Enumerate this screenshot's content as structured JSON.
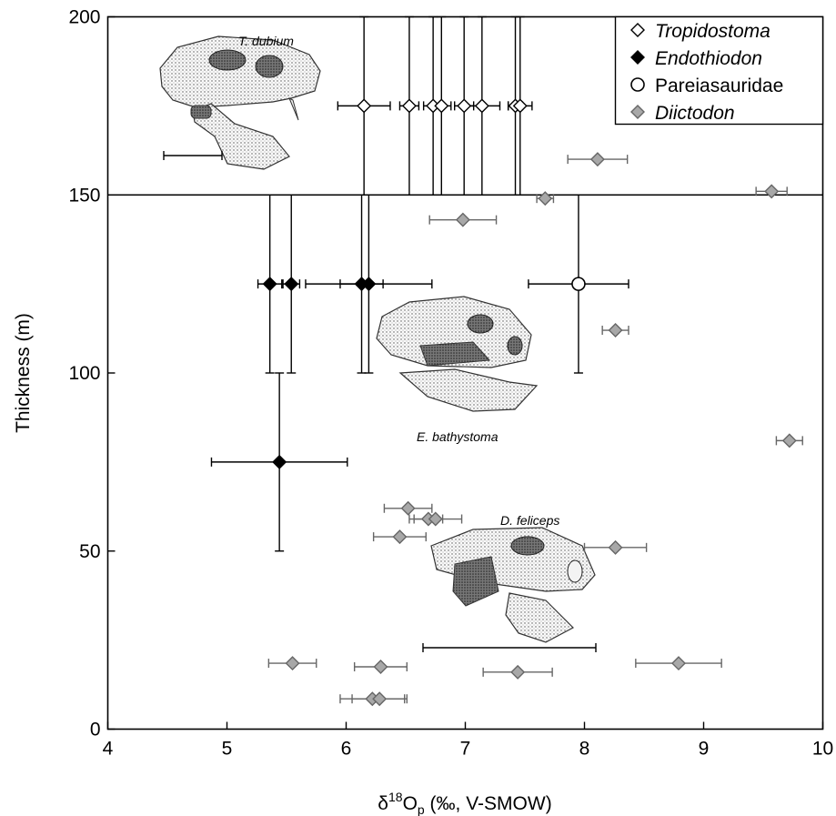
{
  "chart_data": {
    "type": "scatter",
    "xlabel_main": "δ",
    "xlabel_sup": "18",
    "xlabel_rest": "O",
    "xlabel_sub": "p",
    "xlabel_units": " (‰, V-SMOW)",
    "ylabel": "Thickness (m)",
    "xlim": [
      4,
      10
    ],
    "ylim": [
      0,
      200
    ],
    "xticks": [
      "4",
      "5",
      "6",
      "7",
      "8",
      "9",
      "10"
    ],
    "yticks": [
      "0",
      "50",
      "100",
      "150",
      "200"
    ],
    "grid": false,
    "legend_position": "top-right",
    "legend": [
      {
        "name": "Tropidostoma",
        "marker": "open-diamond",
        "italic": true
      },
      {
        "name": "Endothiodon",
        "marker": "filled-diamond",
        "italic": true
      },
      {
        "name": "Pareiasauridae",
        "marker": "open-circle",
        "italic": false
      },
      {
        "name": "Diictodon",
        "marker": "grey-diamond",
        "italic": true
      }
    ],
    "zone_boundaries": [
      150
    ],
    "specimen_labels": [
      "T. dubium",
      "E. bathystoma",
      "D. feliceps"
    ],
    "series": [
      {
        "name": "Tropidostoma",
        "marker": "open-diamond",
        "color": "#000000",
        "fill": "#ffffff",
        "points": [
          {
            "x": 6.15,
            "y": 175,
            "xerr": 0.22,
            "yrange": [
              150,
              200
            ]
          },
          {
            "x": 6.53,
            "y": 175,
            "xerr": 0.08,
            "yrange": [
              150,
              200
            ]
          },
          {
            "x": 6.73,
            "y": 175,
            "xerr": 0.08,
            "yrange": [
              150,
              200
            ]
          },
          {
            "x": 6.8,
            "y": 175,
            "xerr": 0.08,
            "yrange": [
              150,
              200
            ]
          },
          {
            "x": 6.99,
            "y": 175,
            "xerr": 0.08,
            "yrange": [
              150,
              200
            ]
          },
          {
            "x": 7.14,
            "y": 175,
            "xerr": 0.15,
            "yrange": [
              150,
              200
            ]
          },
          {
            "x": 7.42,
            "y": 175,
            "xerr": 0.06,
            "yrange": [
              150,
              200
            ]
          },
          {
            "x": 7.46,
            "y": 175,
            "xerr": 0.1,
            "yrange": [
              150,
              200
            ]
          }
        ]
      },
      {
        "name": "Endothiodon",
        "marker": "filled-diamond",
        "color": "#000000",
        "fill": "#000000",
        "points": [
          {
            "x": 5.36,
            "y": 125,
            "xerr": 0.1,
            "yrange": [
              100,
              150
            ]
          },
          {
            "x": 5.54,
            "y": 125,
            "xerr": 0.07,
            "yrange": [
              100,
              150
            ]
          },
          {
            "x": 6.13,
            "y": 125,
            "xerr": 0.18,
            "yrange": [
              100,
              150
            ]
          },
          {
            "x": 6.19,
            "y": 125,
            "xerr": 0.53,
            "yrange": [
              100,
              150
            ]
          },
          {
            "x": 5.44,
            "y": 75,
            "xerr": 0.57,
            "yrange": [
              50,
              100
            ]
          }
        ]
      },
      {
        "name": "Pareiasauridae",
        "marker": "open-circle",
        "color": "#000000",
        "fill": "#ffffff",
        "points": [
          {
            "x": 7.95,
            "y": 125,
            "xerr": 0.42,
            "yrange": [
              100,
              150
            ]
          }
        ]
      },
      {
        "name": "Diictodon",
        "marker": "grey-diamond",
        "color": "#666666",
        "fill": "#a8a8a8",
        "points": [
          {
            "x": 8.11,
            "y": 160,
            "xerr": 0.25
          },
          {
            "x": 9.57,
            "y": 151,
            "xerr": 0.13
          },
          {
            "x": 7.67,
            "y": 149,
            "xerr": 0.07
          },
          {
            "x": 6.98,
            "y": 143,
            "xerr": 0.28
          },
          {
            "x": 8.26,
            "y": 112,
            "xerr": 0.11
          },
          {
            "x": 9.72,
            "y": 81,
            "xerr": 0.11
          },
          {
            "x": 6.52,
            "y": 62,
            "xerr": 0.2
          },
          {
            "x": 6.69,
            "y": 59,
            "xerr": 0.12
          },
          {
            "x": 6.75,
            "y": 59,
            "xerr": 0.22
          },
          {
            "x": 6.45,
            "y": 54,
            "xerr": 0.22
          },
          {
            "x": 8.26,
            "y": 51,
            "xerr": 0.26
          },
          {
            "x": 5.55,
            "y": 18.5,
            "xerr": 0.2
          },
          {
            "x": 6.29,
            "y": 17.5,
            "xerr": 0.22
          },
          {
            "x": 8.79,
            "y": 18.5,
            "xerr": 0.36
          },
          {
            "x": 7.44,
            "y": 16,
            "xerr": 0.29
          },
          {
            "x": 6.22,
            "y": 8.5,
            "xerr": 0.27
          },
          {
            "x": 6.28,
            "y": 8.5,
            "xerr": 0.23
          }
        ]
      }
    ]
  }
}
